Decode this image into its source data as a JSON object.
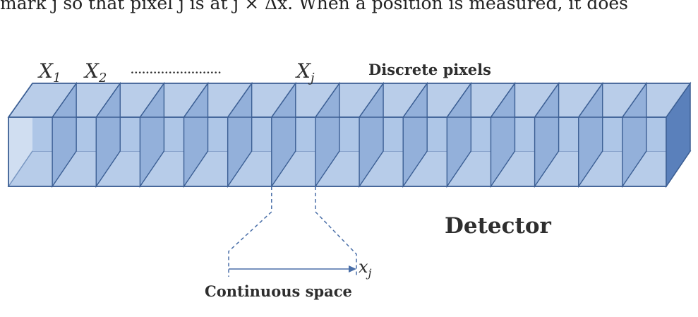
{
  "page_top_text": "mark j so that pixel j is at j × Δx. When a position is measured, it does",
  "labels": {
    "x1_base": "X",
    "x1_sub": "1",
    "x2_base": "X",
    "x2_sub": "2",
    "ellipsis": "........................",
    "xj_base": "X",
    "xj_sub": "j",
    "discrete_pixels": "Discrete pixels",
    "detector": "Detector",
    "continuous_space": "Continuous space",
    "xj_small_base": "x",
    "xj_small_sub": "j"
  },
  "colors": {
    "top_face": "#b9cde9",
    "front_face": "#a9c2e5",
    "inner_floor": "#c7d7ee",
    "inner_back": "#b4c9e8",
    "partition": "#93b0da",
    "end_face": "#5a80bb",
    "edge": "#3c5f94",
    "dashed": "#4a6fa8",
    "text": "#2e2e2e"
  },
  "pixel_count": 15
}
